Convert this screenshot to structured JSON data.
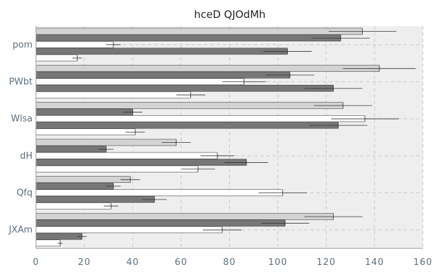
{
  "chart_data": {
    "type": "bar",
    "orientation": "horizontal",
    "title": "hceD QJOdMh",
    "xlabel": "",
    "ylabel": "",
    "xlim": [
      0,
      160
    ],
    "xticks": [
      "0",
      "20",
      "40",
      "60",
      "80",
      "100",
      "120",
      "140",
      "160"
    ],
    "categories": [
      "pom",
      "PWbt",
      "Wlsa",
      "dH",
      "Qfq",
      "JXAm"
    ],
    "grid": true,
    "legend": "none",
    "series": [
      {
        "color": "#d3d3d3",
        "values": [
          135,
          142,
          127,
          58,
          39,
          123
        ],
        "errors": [
          14,
          15,
          12,
          6,
          4,
          12
        ]
      },
      {
        "color": "#777777",
        "values": [
          126,
          105,
          40,
          29,
          32,
          103
        ],
        "errors": [
          12,
          10,
          4,
          3,
          3,
          10
        ]
      },
      {
        "color": "#ffffff",
        "values": [
          32,
          86,
          136,
          75,
          102,
          77
        ],
        "errors": [
          3,
          9,
          14,
          7,
          10,
          8
        ]
      },
      {
        "color": "#777777",
        "values": [
          104,
          123,
          125,
          87,
          49,
          19
        ],
        "errors": [
          10,
          12,
          12,
          9,
          5,
          2
        ]
      },
      {
        "color": "#ffffff",
        "values": [
          17,
          64,
          41,
          67,
          31,
          10
        ],
        "errors": [
          2,
          6,
          4,
          7,
          3,
          1
        ]
      }
    ]
  }
}
